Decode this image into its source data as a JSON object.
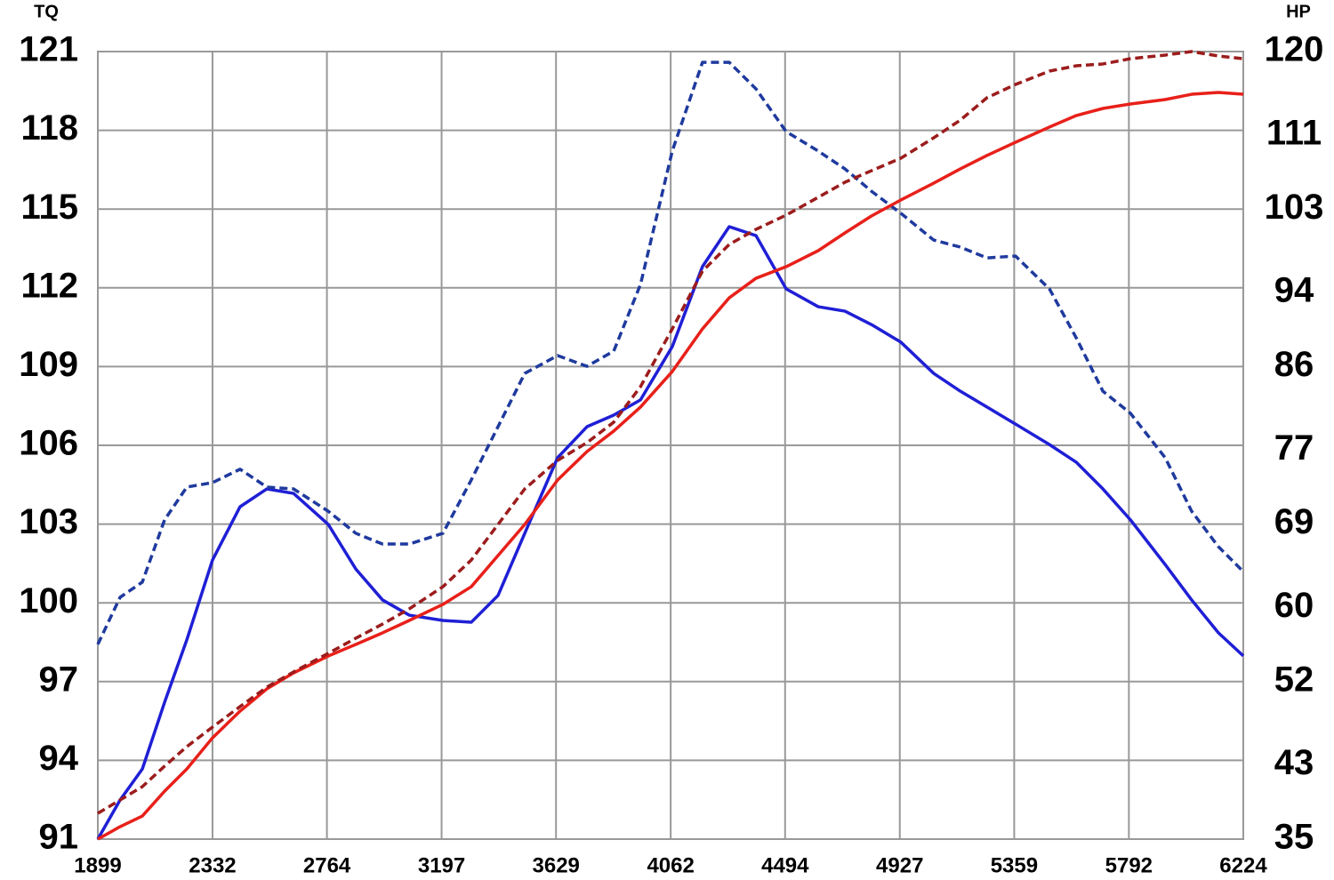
{
  "chart_data": {
    "type": "line",
    "y_label": "TQ",
    "y2_label": "HP",
    "xlim": [
      1899,
      6224
    ],
    "xticks": [
      1899,
      2332,
      2764,
      3197,
      3629,
      4062,
      4494,
      4927,
      5359,
      5792,
      6224
    ],
    "ylim": [
      91,
      121
    ],
    "yticks": [
      91,
      94,
      97,
      100,
      103,
      106,
      109,
      112,
      115,
      118,
      121
    ],
    "y2lim": [
      35,
      120
    ],
    "y2ticks": [
      35,
      43,
      52,
      60,
      69,
      77,
      86,
      94,
      103,
      111,
      120
    ],
    "grid": true,
    "x": [
      1899,
      1983,
      2067,
      2151,
      2235,
      2332,
      2436,
      2537,
      2638,
      2769,
      2873,
      2974,
      3075,
      3202,
      3309,
      3410,
      3511,
      3635,
      3746,
      3847,
      3948,
      4068,
      4182,
      4283,
      4384,
      4498,
      4619,
      4720,
      4820,
      4931,
      5055,
      5156,
      5256,
      5364,
      5492,
      5593,
      5694,
      5798,
      5929,
      6029,
      6130,
      6224
    ],
    "series": [
      {
        "color": "#1f1fd6",
        "style": "solid",
        "axis": "y",
        "values": [
          91.0,
          92.49,
          93.67,
          96.21,
          98.59,
          101.63,
          103.66,
          104.34,
          104.17,
          102.99,
          101.29,
          100.11,
          99.53,
          99.33,
          99.26,
          100.28,
          102.65,
          105.53,
          106.71,
          107.15,
          107.73,
          109.76,
          112.81,
          114.33,
          113.99,
          111.96,
          111.28,
          111.11,
          110.6,
          109.93,
          108.74,
          108.06,
          107.46,
          106.81,
          106.03,
          105.36,
          104.34,
          103.16,
          101.46,
          100.11,
          98.86,
          97.98
        ]
      },
      {
        "color": "#1f3a9e",
        "style": "dashed",
        "axis": "y",
        "values": [
          98.42,
          100.21,
          100.79,
          103.16,
          104.41,
          104.58,
          105.09,
          104.41,
          104.34,
          103.49,
          102.65,
          102.24,
          102.24,
          102.65,
          104.68,
          106.71,
          108.74,
          109.42,
          109.01,
          109.59,
          112.13,
          117.21,
          120.59,
          120.59,
          119.58,
          117.95,
          117.21,
          116.53,
          115.68,
          114.84,
          113.82,
          113.55,
          113.14,
          113.21,
          111.96,
          110.1,
          108.06,
          107.22,
          105.53,
          103.49,
          102.14,
          101.19
        ]
      },
      {
        "color": "#e8201a",
        "style": "solid",
        "axis": "y2",
        "values": [
          35.0,
          36.34,
          37.49,
          40.17,
          42.57,
          45.93,
          48.81,
          51.21,
          52.94,
          54.76,
          56.01,
          57.26,
          58.6,
          60.33,
          62.24,
          65.6,
          68.96,
          73.76,
          76.83,
          79.04,
          81.63,
          85.47,
          90.07,
          93.42,
          95.53,
          96.78,
          98.51,
          100.43,
          102.25,
          103.98,
          105.8,
          107.34,
          108.78,
          110.21,
          111.85,
          113.09,
          113.86,
          114.34,
          114.82,
          115.39,
          115.59,
          115.39
        ]
      },
      {
        "color": "#9c1c1c",
        "style": "dashed",
        "axis": "y2",
        "values": [
          37.78,
          39.22,
          40.66,
          42.87,
          44.98,
          47.09,
          49.3,
          51.4,
          53.04,
          55.05,
          56.68,
          58.21,
          59.85,
          62.24,
          65.12,
          68.96,
          72.8,
          75.87,
          77.79,
          80.0,
          83.83,
          90.07,
          96.3,
          99.18,
          100.81,
          102.35,
          104.27,
          105.9,
          107.14,
          108.49,
          110.69,
          112.61,
          115.01,
          116.45,
          117.89,
          118.46,
          118.66,
          119.23,
          119.62,
          120.0,
          119.52,
          119.23
        ]
      }
    ]
  }
}
